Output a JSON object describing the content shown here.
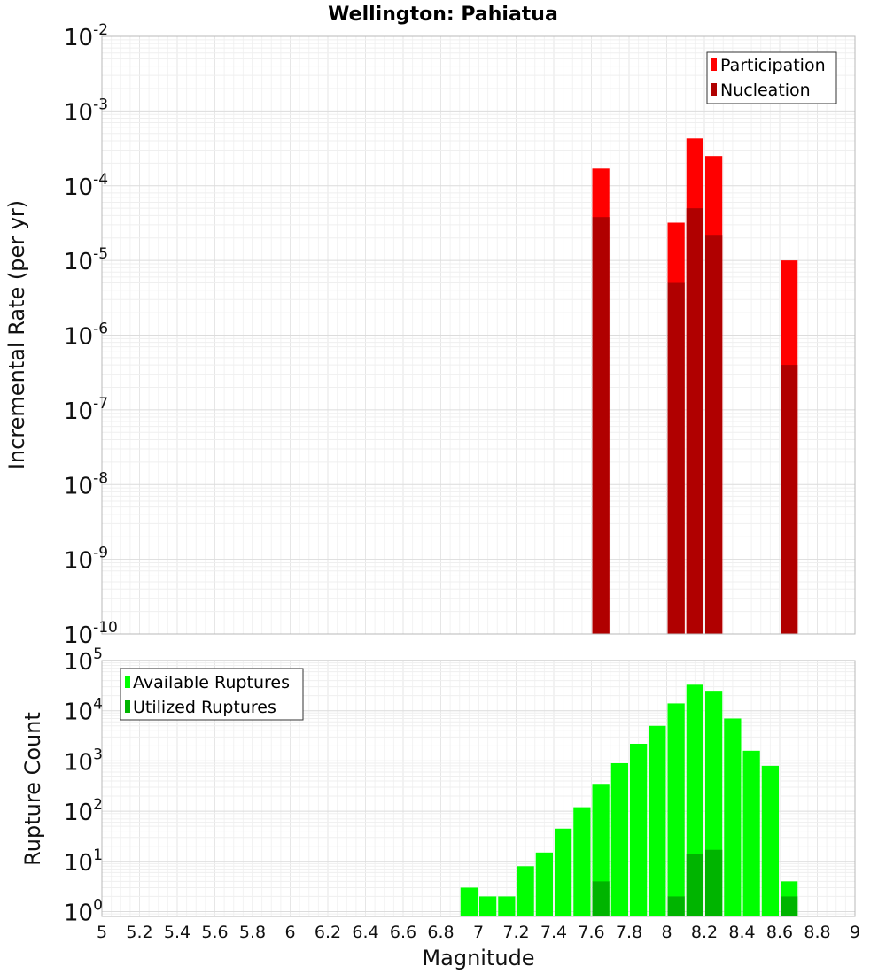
{
  "chart_data": {
    "type": "bar",
    "title": "Wellington: Pahiatua",
    "xlabel": "Magnitude",
    "xlim": [
      5,
      9
    ],
    "x_ticks": [
      "5",
      "5.2",
      "5.4",
      "5.6",
      "5.8",
      "6",
      "6.2",
      "6.4",
      "6.6",
      "6.8",
      "7",
      "7.2",
      "7.4",
      "7.6",
      "7.8",
      "8",
      "8.2",
      "8.4",
      "8.6",
      "8.8",
      "9"
    ],
    "grid": true,
    "panels": [
      {
        "ylabel": "Incremental Rate (per yr)",
        "yscale": "log",
        "ylim": [
          1e-10,
          0.01
        ],
        "y_tick_exponents": [
          "-10",
          "-9",
          "-8",
          "-7",
          "-6",
          "-5",
          "-4",
          "-3",
          "-2"
        ],
        "legend_placement": "top-right",
        "series": [
          {
            "name": "Participation",
            "color": "#ff0000",
            "x": [
              7.65,
              8.05,
              8.15,
              8.25,
              8.65
            ],
            "values": [
              0.00017,
              3.2e-05,
              0.00043,
              0.00025,
              1e-05
            ]
          },
          {
            "name": "Nucleation",
            "color": "#b00000",
            "x": [
              7.65,
              8.05,
              8.15,
              8.25,
              8.65
            ],
            "values": [
              3.8e-05,
              5e-06,
              5e-05,
              2.2e-05,
              4e-07
            ]
          }
        ]
      },
      {
        "ylabel": "Rupture Count",
        "yscale": "log",
        "ylim": [
          0.8,
          100000.0
        ],
        "y_tick_exponents": [
          "0",
          "1",
          "2",
          "3",
          "4",
          "5"
        ],
        "legend_placement": "top-left",
        "series": [
          {
            "name": "Available Ruptures",
            "color": "#00ff00",
            "x": [
              6.95,
              7.05,
              7.15,
              7.25,
              7.35,
              7.45,
              7.55,
              7.65,
              7.75,
              7.85,
              7.95,
              8.05,
              8.15,
              8.25,
              8.35,
              8.45,
              8.55,
              8.65
            ],
            "values": [
              3,
              2,
              2,
              8,
              15,
              45,
              120,
              350,
              900,
              2200,
              5000,
              14000,
              33000,
              25000,
              7000,
              1600,
              800,
              4
            ]
          },
          {
            "name": "Utilized Ruptures",
            "color": "#00b400",
            "x": [
              7.65,
              8.05,
              8.15,
              8.25,
              8.65
            ],
            "values": [
              4,
              2,
              14,
              17,
              2
            ]
          }
        ]
      }
    ]
  }
}
